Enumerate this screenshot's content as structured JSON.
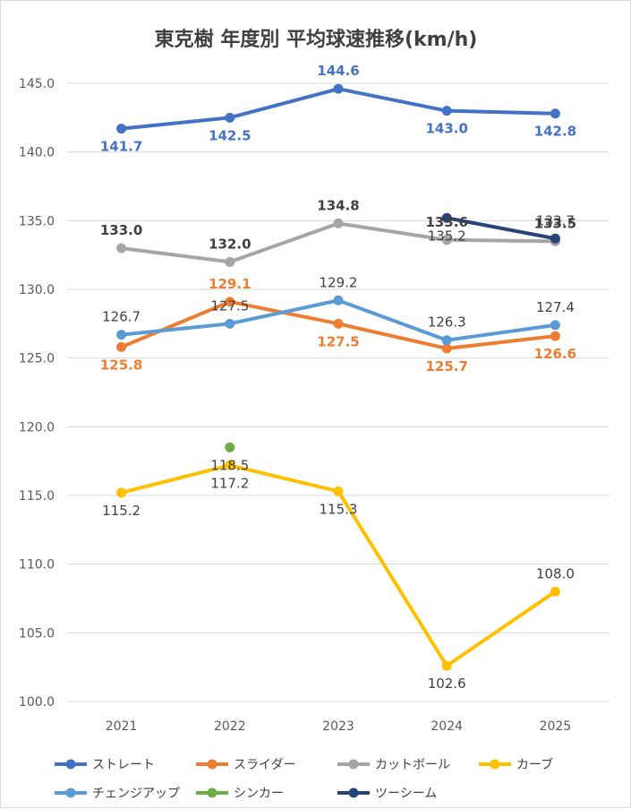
{
  "chart_data": {
    "type": "line",
    "title": "東克樹 年度別 平均球速推移(km/h)",
    "categories": [
      "2021",
      "2022",
      "2023",
      "2024",
      "2025"
    ],
    "ylim": [
      100,
      145
    ],
    "yticks": [
      "100.0",
      "105.0",
      "110.0",
      "115.0",
      "120.0",
      "125.0",
      "130.0",
      "135.0",
      "140.0",
      "145.0"
    ],
    "grid": true,
    "legend": "bottom",
    "series": [
      {
        "name": "ストレート",
        "color": "#4472C4",
        "values": [
          141.7,
          142.5,
          144.6,
          143.0,
          142.8
        ],
        "labels": [
          "141.7",
          "142.5",
          "144.6",
          "143.0",
          "142.8"
        ],
        "label_bold": true
      },
      {
        "name": "スライダー",
        "color": "#ED7D31",
        "values": [
          125.8,
          129.1,
          127.5,
          125.7,
          126.6
        ],
        "labels": [
          "125.8",
          "129.1",
          "127.5",
          "125.7",
          "126.6"
        ],
        "label_bold": true
      },
      {
        "name": "カットボール",
        "color": "#A5A5A5",
        "values": [
          133.0,
          132.0,
          134.8,
          133.6,
          133.5
        ],
        "labels": [
          "133.0",
          "132.0",
          "134.8",
          "133.6",
          "133.5"
        ],
        "label_bold": true
      },
      {
        "name": "カーブ",
        "color": "#FFC000",
        "values": [
          115.2,
          117.2,
          115.3,
          102.6,
          108.0
        ],
        "labels": [
          "115.2",
          "117.2",
          "115.3",
          "102.6",
          "108.0"
        ],
        "label_bold": false
      },
      {
        "name": "チェンジアップ",
        "color": "#5B9BD5",
        "values": [
          126.7,
          127.5,
          129.2,
          126.3,
          127.4
        ],
        "labels": [
          "126.7",
          "127.5",
          "129.2",
          "126.3",
          "127.4"
        ],
        "label_bold": false
      },
      {
        "name": "シンカー",
        "color": "#70AD47",
        "values": [
          null,
          118.5,
          null,
          null,
          null
        ],
        "labels": [
          null,
          "118.5",
          null,
          null,
          null
        ],
        "label_bold": false
      },
      {
        "name": "ツーシーム",
        "color": "#264478",
        "values": [
          null,
          null,
          null,
          135.2,
          133.7
        ],
        "labels": [
          null,
          null,
          null,
          "135.2",
          "133.7"
        ],
        "label_bold": false
      }
    ]
  }
}
